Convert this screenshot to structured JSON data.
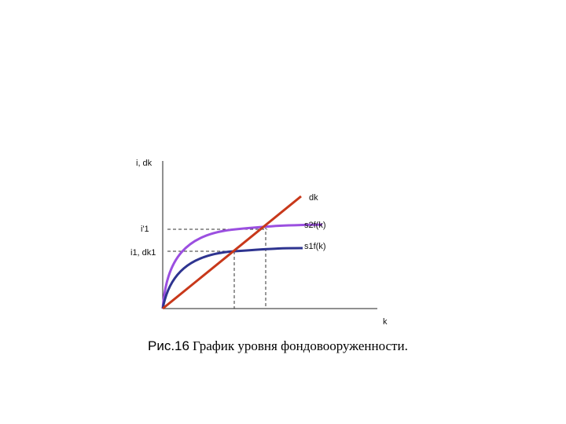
{
  "axes": {
    "y_label": "i, dk",
    "x_label": "k"
  },
  "curves": {
    "line_label": "dk",
    "upper_label": "s2f(k)",
    "lower_label": "s1f(k)"
  },
  "levels": {
    "upper": "i'1",
    "lower": "i1, dk1"
  },
  "caption": {
    "number": "Рис.16",
    "text": "График уровня фондовооруженности."
  }
}
